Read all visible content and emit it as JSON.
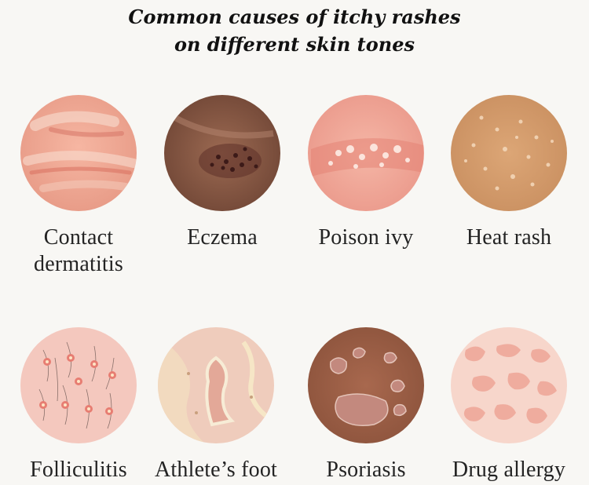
{
  "title": {
    "line1": "Common causes of itchy rashes",
    "line2": "on different skin tones"
  },
  "rashes": [
    {
      "label_line1": "Contact",
      "label_line2": "dermatitis",
      "icon": "contact-dermatitis-skin-image",
      "base_color": "#f2ac98"
    },
    {
      "label_line1": "Eczema",
      "label_line2": "",
      "icon": "eczema-skin-image",
      "base_color": "#8a5a44"
    },
    {
      "label_line1": "Poison ivy",
      "label_line2": "",
      "icon": "poison-ivy-skin-image",
      "base_color": "#f0a898"
    },
    {
      "label_line1": "Heat rash",
      "label_line2": "",
      "icon": "heat-rash-skin-image",
      "base_color": "#cf9b6c"
    },
    {
      "label_line1": "Folliculitis",
      "label_line2": "",
      "icon": "folliculitis-skin-image",
      "base_color": "#f3c6bc"
    },
    {
      "label_line1": "Athlete’s foot",
      "label_line2": "",
      "icon": "athletes-foot-skin-image",
      "base_color": "#eac8b8"
    },
    {
      "label_line1": "Psoriasis",
      "label_line2": "",
      "icon": "psoriasis-skin-image",
      "base_color": "#9c5f46"
    },
    {
      "label_line1": "Drug allergy",
      "label_line2": "",
      "icon": "drug-allergy-skin-image",
      "base_color": "#f6d2c6"
    }
  ]
}
